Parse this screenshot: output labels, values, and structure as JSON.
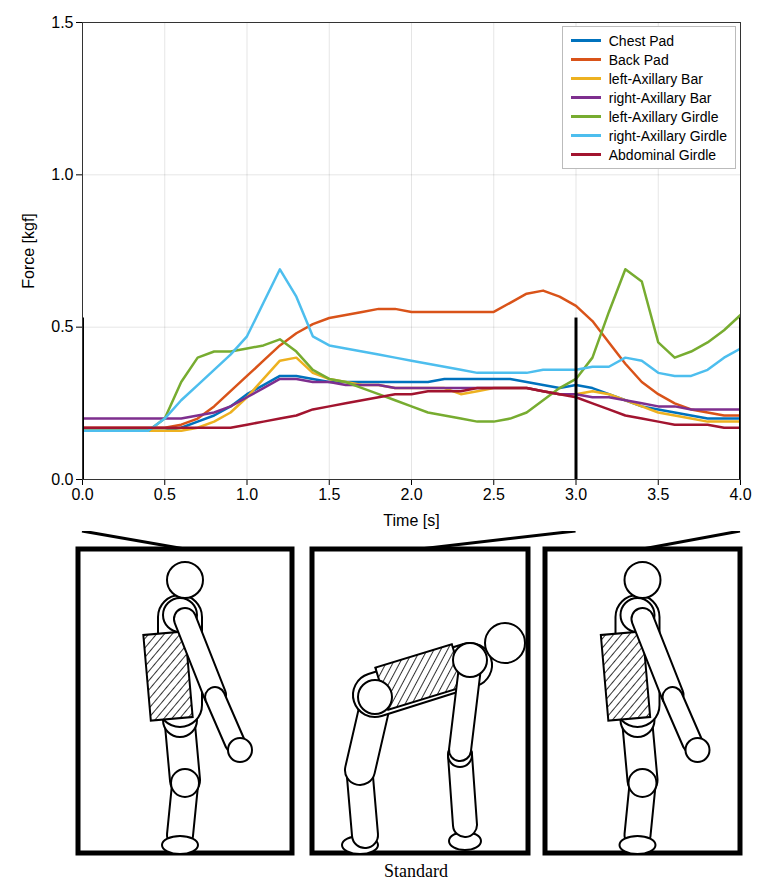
{
  "chart_data": {
    "type": "line",
    "x_label": "Time [s]",
    "y_label": "Force [kgf]",
    "caption": "Standard",
    "x": [
      0,
      0.1,
      0.2,
      0.3,
      0.4,
      0.5,
      0.6,
      0.7,
      0.8,
      0.9,
      1,
      1.1,
      1.2,
      1.3,
      1.4,
      1.5,
      1.6,
      1.7,
      1.8,
      1.9,
      2,
      2.1,
      2.2,
      2.3,
      2.4,
      2.5,
      2.6,
      2.7,
      2.8,
      2.9,
      3,
      3.1,
      3.2,
      3.3,
      3.4,
      3.5,
      3.6,
      3.7,
      3.8,
      3.9,
      4
    ],
    "series": [
      {
        "name": "Chest Pad",
        "color": "#0072BD",
        "values": [
          0.16,
          0.16,
          0.16,
          0.16,
          0.16,
          0.16,
          0.17,
          0.19,
          0.21,
          0.24,
          0.28,
          0.31,
          0.34,
          0.34,
          0.33,
          0.32,
          0.32,
          0.32,
          0.32,
          0.32,
          0.32,
          0.32,
          0.33,
          0.33,
          0.33,
          0.33,
          0.33,
          0.32,
          0.31,
          0.3,
          0.31,
          0.3,
          0.28,
          0.26,
          0.24,
          0.23,
          0.22,
          0.21,
          0.2,
          0.2,
          0.2
        ]
      },
      {
        "name": "Back Pad",
        "color": "#D95319",
        "values": [
          0.17,
          0.17,
          0.17,
          0.17,
          0.17,
          0.17,
          0.18,
          0.2,
          0.24,
          0.29,
          0.34,
          0.39,
          0.44,
          0.48,
          0.51,
          0.53,
          0.54,
          0.55,
          0.56,
          0.56,
          0.55,
          0.55,
          0.55,
          0.55,
          0.55,
          0.55,
          0.58,
          0.61,
          0.62,
          0.6,
          0.57,
          0.52,
          0.45,
          0.38,
          0.32,
          0.28,
          0.25,
          0.23,
          0.22,
          0.21,
          0.21
        ]
      },
      {
        "name": "left-Axillary Bar",
        "color": "#EDB120",
        "values": [
          0.16,
          0.16,
          0.16,
          0.16,
          0.16,
          0.16,
          0.16,
          0.17,
          0.19,
          0.22,
          0.27,
          0.33,
          0.39,
          0.4,
          0.35,
          0.33,
          0.32,
          0.31,
          0.31,
          0.3,
          0.3,
          0.3,
          0.3,
          0.28,
          0.29,
          0.3,
          0.3,
          0.3,
          0.29,
          0.28,
          0.28,
          0.29,
          0.28,
          0.26,
          0.24,
          0.22,
          0.21,
          0.2,
          0.19,
          0.19,
          0.19
        ]
      },
      {
        "name": "right-Axillary Bar",
        "color": "#7E2F8E",
        "values": [
          0.2,
          0.2,
          0.2,
          0.2,
          0.2,
          0.2,
          0.2,
          0.21,
          0.22,
          0.24,
          0.27,
          0.3,
          0.33,
          0.33,
          0.32,
          0.32,
          0.31,
          0.31,
          0.31,
          0.3,
          0.3,
          0.3,
          0.3,
          0.3,
          0.3,
          0.3,
          0.3,
          0.3,
          0.29,
          0.28,
          0.28,
          0.27,
          0.27,
          0.26,
          0.25,
          0.24,
          0.24,
          0.23,
          0.23,
          0.23,
          0.23
        ]
      },
      {
        "name": "left-Axillary Girdle",
        "color": "#77AC30",
        "values": [
          0.16,
          0.16,
          0.16,
          0.16,
          0.16,
          0.2,
          0.32,
          0.4,
          0.42,
          0.42,
          0.43,
          0.44,
          0.46,
          0.42,
          0.36,
          0.33,
          0.32,
          0.3,
          0.28,
          0.26,
          0.24,
          0.22,
          0.21,
          0.2,
          0.19,
          0.19,
          0.2,
          0.22,
          0.26,
          0.3,
          0.33,
          0.4,
          0.55,
          0.69,
          0.65,
          0.45,
          0.4,
          0.42,
          0.45,
          0.49,
          0.54
        ]
      },
      {
        "name": "right-Axillary Girdle",
        "color": "#4DBEEE",
        "values": [
          0.16,
          0.16,
          0.16,
          0.16,
          0.16,
          0.2,
          0.26,
          0.31,
          0.36,
          0.41,
          0.47,
          0.58,
          0.69,
          0.6,
          0.47,
          0.44,
          0.43,
          0.42,
          0.41,
          0.4,
          0.39,
          0.38,
          0.37,
          0.36,
          0.35,
          0.35,
          0.35,
          0.35,
          0.36,
          0.36,
          0.36,
          0.37,
          0.37,
          0.4,
          0.39,
          0.35,
          0.34,
          0.34,
          0.36,
          0.4,
          0.43
        ]
      },
      {
        "name": "Abdominal Girdle",
        "color": "#A2142F",
        "values": [
          0.17,
          0.17,
          0.17,
          0.17,
          0.17,
          0.17,
          0.17,
          0.17,
          0.17,
          0.17,
          0.18,
          0.19,
          0.2,
          0.21,
          0.23,
          0.24,
          0.25,
          0.26,
          0.27,
          0.28,
          0.28,
          0.29,
          0.29,
          0.29,
          0.3,
          0.3,
          0.3,
          0.3,
          0.29,
          0.28,
          0.27,
          0.25,
          0.23,
          0.21,
          0.2,
          0.19,
          0.18,
          0.18,
          0.18,
          0.17,
          0.17
        ]
      }
    ],
    "snapshots": {
      "times": [
        0,
        3,
        4
      ],
      "top": 0.53
    },
    "xlim": [
      0,
      4
    ],
    "xticks": [
      {
        "value": 0,
        "label": "0.0"
      },
      0.5,
      {
        "value": 1,
        "label": "1.0"
      },
      1.5,
      {
        "value": 2,
        "label": "2.0"
      },
      2.5,
      {
        "value": 3,
        "label": "3.0"
      },
      3.5,
      {
        "value": 4,
        "label": "4.0"
      }
    ],
    "ylim": [
      0,
      1.5
    ],
    "yticks": [
      {
        "value": 0,
        "label": "0.0"
      },
      0.5,
      {
        "value": 1,
        "label": "1.0"
      },
      1.5
    ],
    "grid": true,
    "legend": "northeast"
  }
}
